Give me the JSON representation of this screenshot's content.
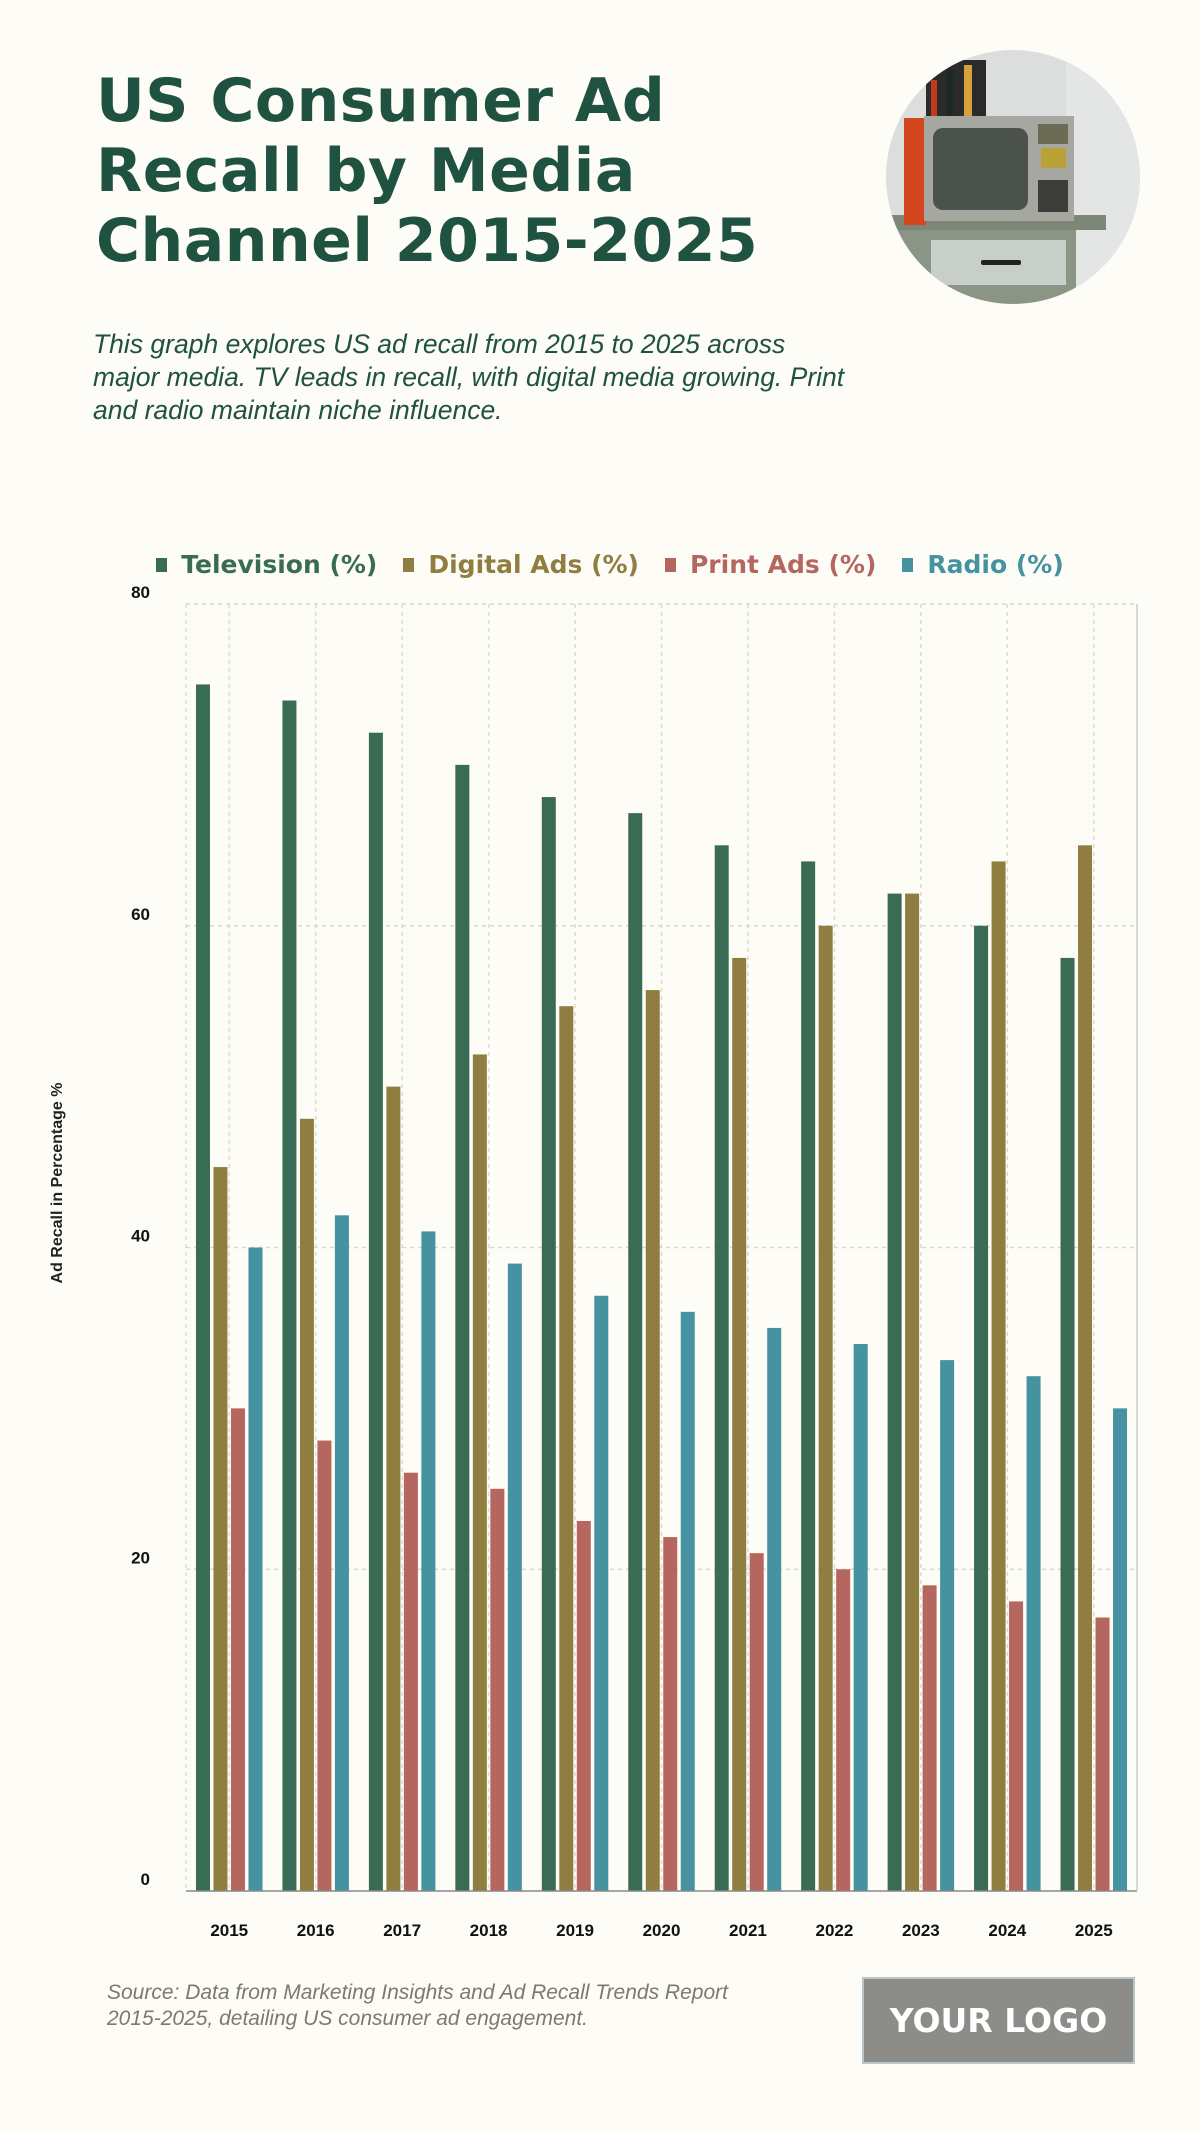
{
  "header": {
    "title": "US Consumer Ad Recall by Media Channel 2015-2025",
    "subtitle": "This graph explores US ad recall from 2015 to 2025 across major media. TV leads in recall, with digital media growing. Print and radio maintain niche influence."
  },
  "image": {
    "description_icon": "retro-television-photo"
  },
  "footer": {
    "source": "Source: Data from Marketing Insights and Ad Recall Trends Report 2015-2025, detailing US consumer ad engagement.",
    "logo": "YOUR LOGO"
  },
  "colors": {
    "title": "#1f5240",
    "background": "#fdfcf6"
  },
  "chart_data": {
    "type": "bar",
    "title": "",
    "xlabel": "",
    "ylabel": "Ad Recall in Percentage %",
    "ylim": [
      0,
      80
    ],
    "yticks": [
      0,
      20,
      40,
      60,
      80
    ],
    "grid": true,
    "legend_position": "top",
    "categories": [
      "2015",
      "2016",
      "2017",
      "2018",
      "2019",
      "2020",
      "2021",
      "2022",
      "2023",
      "2024",
      "2025"
    ],
    "series": [
      {
        "name": "Television (%)",
        "color": "#3a6b55",
        "values": [
          75,
          74,
          72,
          70,
          68,
          67,
          65,
          64,
          62,
          60,
          58
        ]
      },
      {
        "name": "Digital Ads (%)",
        "color": "#8f7e40",
        "values": [
          45,
          48,
          50,
          52,
          55,
          56,
          58,
          60,
          62,
          64,
          65
        ]
      },
      {
        "name": "Print Ads (%)",
        "color": "#b5665f",
        "values": [
          30,
          28,
          26,
          25,
          23,
          22,
          21,
          20,
          19,
          18,
          17
        ]
      },
      {
        "name": "Radio (%)",
        "color": "#4592a0",
        "values": [
          40,
          42,
          41,
          39,
          37,
          36,
          35,
          34,
          33,
          32,
          30
        ]
      }
    ]
  }
}
